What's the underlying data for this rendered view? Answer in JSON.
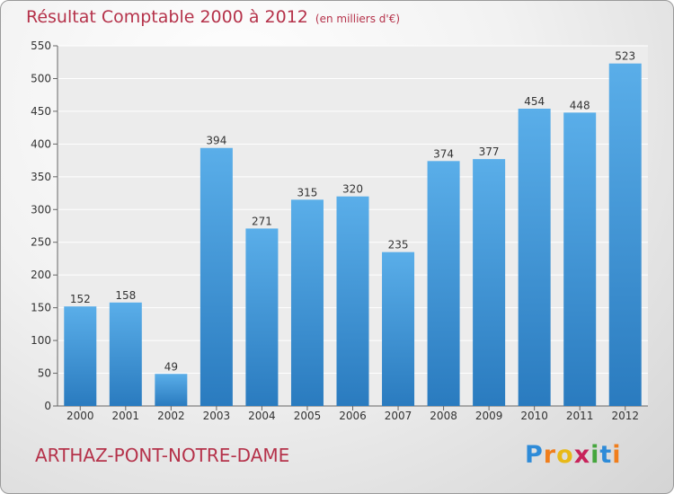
{
  "title": "Résultat Comptable 2000 à 2012",
  "subtitle": "(en milliers d'€)",
  "commune": "ARTHAZ-PONT-NOTRE-DAME",
  "logo": {
    "p": "P",
    "r": "r",
    "o": "o",
    "x": "x",
    "i": "i",
    "t": "t",
    "i2": "i"
  },
  "colors": {
    "bar_top": "#5aaee9",
    "bar_bottom": "#2a7bbf",
    "title": "#b5324a"
  },
  "chart_data": {
    "type": "bar",
    "title": "Résultat Comptable 2000 à 2012",
    "subtitle": "(en milliers d'€)",
    "xlabel": "",
    "ylabel": "",
    "categories": [
      "2000",
      "2001",
      "2002",
      "2003",
      "2004",
      "2005",
      "2006",
      "2007",
      "2008",
      "2009",
      "2010",
      "2011",
      "2012"
    ],
    "values": [
      152,
      158,
      49,
      394,
      271,
      315,
      320,
      235,
      374,
      377,
      454,
      448,
      523
    ],
    "ylim": [
      0,
      550
    ],
    "yticks": [
      0,
      50,
      100,
      150,
      200,
      250,
      300,
      350,
      400,
      450,
      500,
      550
    ],
    "grid": true,
    "data_labels": true,
    "legend": "none"
  }
}
